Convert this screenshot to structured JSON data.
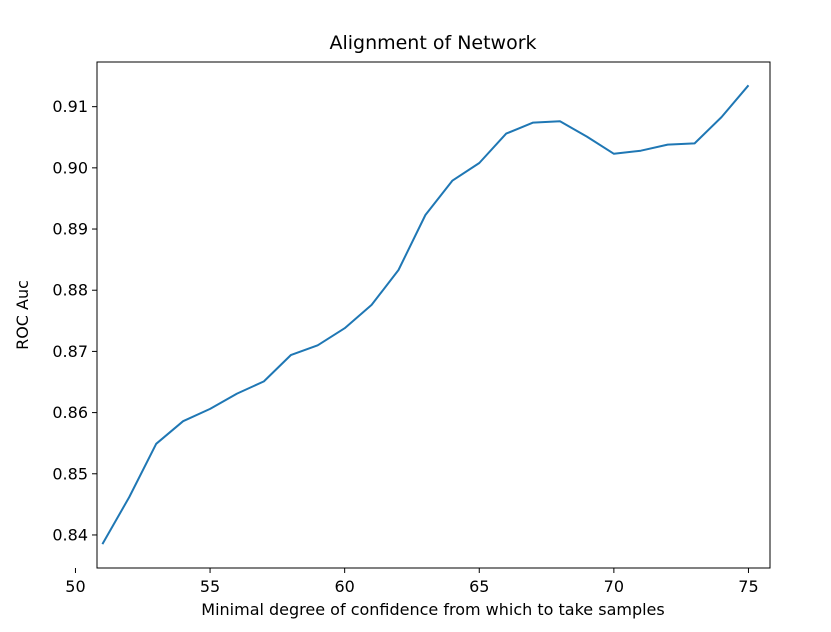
{
  "chart_data": {
    "type": "line",
    "title": "Alignment of Network",
    "xlabel": "Minimal degree of confidence from which to take samples",
    "ylabel": "ROC Auc",
    "xlim": [
      50.8,
      75.8
    ],
    "ylim": [
      0.8346,
      0.9173
    ],
    "x_ticks": [
      "50",
      "55",
      "60",
      "65",
      "70",
      "75"
    ],
    "y_ticks": [
      "0.84",
      "0.85",
      "0.86",
      "0.87",
      "0.88",
      "0.89",
      "0.90",
      "0.91"
    ],
    "grid": false,
    "line_color": "#1f77b4",
    "series": [
      {
        "x": [
          51,
          52,
          53,
          54,
          55,
          56,
          57,
          58,
          59,
          60,
          61,
          62,
          63,
          64,
          65,
          66,
          67,
          68,
          69,
          70,
          71,
          72,
          73,
          74,
          75
        ],
        "values": [
          0.8385,
          0.8462,
          0.8549,
          0.8586,
          0.8606,
          0.8631,
          0.8651,
          0.8694,
          0.871,
          0.8738,
          0.8776,
          0.8833,
          0.8923,
          0.8979,
          0.9008,
          0.9056,
          0.9074,
          0.9076,
          0.9051,
          0.9023,
          0.9028,
          0.9038,
          0.904,
          0.9083,
          0.9135
        ]
      }
    ]
  }
}
